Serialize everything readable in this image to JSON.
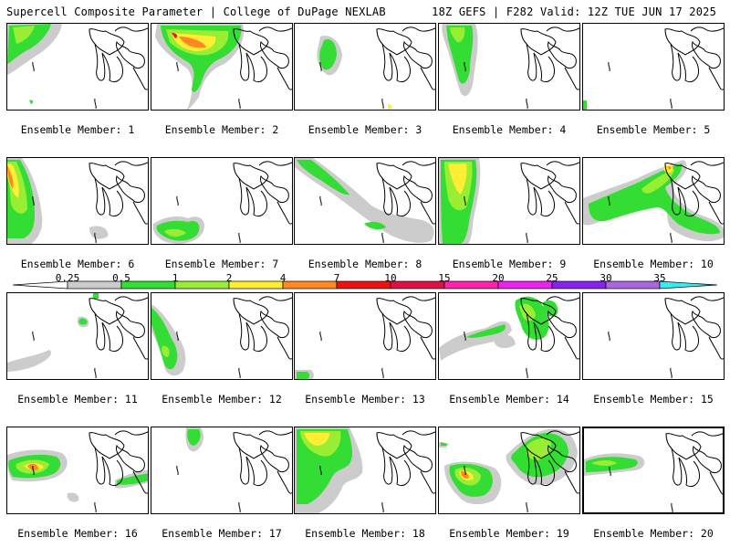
{
  "header": {
    "left": "Supercell Composite Parameter | College of DuPage NEXLAB",
    "right": "18Z GEFS | F282 Valid: 12Z TUE JUN 17 2025"
  },
  "colorbar": {
    "ticks": [
      "0.25",
      "0.5",
      "1",
      "2",
      "4",
      "7",
      "10",
      "15",
      "20",
      "25",
      "30",
      "35"
    ],
    "colors": [
      "#cccccc",
      "#33dd33",
      "#99ee33",
      "#ffee33",
      "#ff8822",
      "#ee1111",
      "#dd1144",
      "#ff22aa",
      "#ee22ee",
      "#8822ee",
      "#aa66dd",
      "#33eeee"
    ]
  },
  "panels": [
    {
      "label": "Ensemble Member: 1"
    },
    {
      "label": "Ensemble Member: 2"
    },
    {
      "label": "Ensemble Member: 3"
    },
    {
      "label": "Ensemble Member: 4"
    },
    {
      "label": "Ensemble Member: 5"
    },
    {
      "label": "Ensemble Member: 6"
    },
    {
      "label": "Ensemble Member: 7"
    },
    {
      "label": "Ensemble Member: 8"
    },
    {
      "label": "Ensemble Member: 9"
    },
    {
      "label": "Ensemble Member: 10"
    },
    {
      "label": "Ensemble Member: 11"
    },
    {
      "label": "Ensemble Member: 12"
    },
    {
      "label": "Ensemble Member: 13"
    },
    {
      "label": "Ensemble Member: 14"
    },
    {
      "label": "Ensemble Member: 15"
    },
    {
      "label": "Ensemble Member: 16"
    },
    {
      "label": "Ensemble Member: 17"
    },
    {
      "label": "Ensemble Member: 18"
    },
    {
      "label": "Ensemble Member: 19"
    },
    {
      "label": "Ensemble Member: 20"
    }
  ]
}
